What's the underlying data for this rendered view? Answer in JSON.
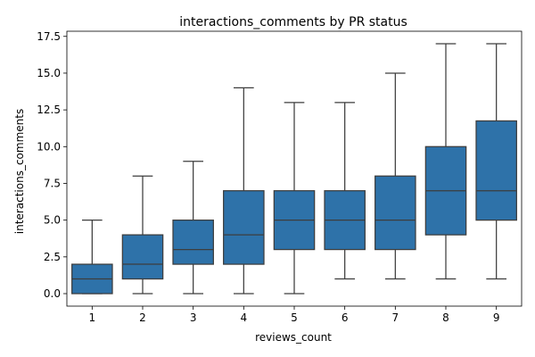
{
  "chart_data": {
    "type": "box",
    "title": "interactions_comments by PR status",
    "xlabel": "reviews_count",
    "ylabel": "interactions_comments",
    "categories": [
      "1",
      "2",
      "3",
      "4",
      "5",
      "6",
      "7",
      "8",
      "9"
    ],
    "boxes": [
      {
        "category": "1",
        "min": 0,
        "q1": 0,
        "median": 1,
        "q3": 2,
        "max": 5
      },
      {
        "category": "2",
        "min": 0,
        "q1": 1,
        "median": 2,
        "q3": 4,
        "max": 8
      },
      {
        "category": "3",
        "min": 0,
        "q1": 2,
        "median": 3,
        "q3": 5,
        "max": 9
      },
      {
        "category": "4",
        "min": 0,
        "q1": 2,
        "median": 4,
        "q3": 7,
        "max": 14
      },
      {
        "category": "5",
        "min": 0,
        "q1": 3,
        "median": 5,
        "q3": 7,
        "max": 13
      },
      {
        "category": "6",
        "min": 1,
        "q1": 3,
        "median": 5,
        "q3": 7,
        "max": 13
      },
      {
        "category": "7",
        "min": 1,
        "q1": 3,
        "median": 5,
        "q3": 8,
        "max": 15
      },
      {
        "category": "8",
        "min": 1,
        "q1": 4,
        "median": 7,
        "q3": 10,
        "max": 17
      },
      {
        "category": "9",
        "min": 1,
        "q1": 5,
        "median": 7,
        "q3": 11.75,
        "max": 17
      }
    ],
    "yticks": [
      "0.0",
      "2.5",
      "5.0",
      "7.5",
      "10.0",
      "12.5",
      "15.0",
      "17.5"
    ],
    "ytick_values": [
      0,
      2.5,
      5,
      7.5,
      10,
      12.5,
      15,
      17.5
    ],
    "ylim": [
      -0.85,
      17.85
    ],
    "grid": false,
    "box_color": "#2e72a9",
    "line_color": "#3d3d3d"
  }
}
